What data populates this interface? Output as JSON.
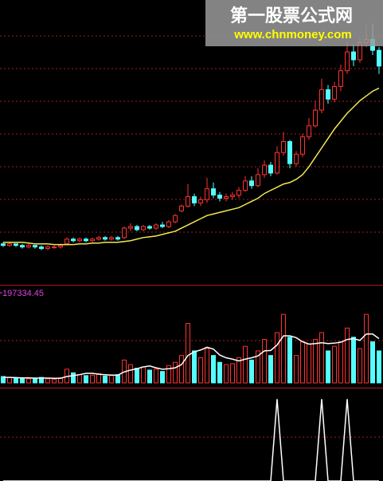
{
  "watermark": {
    "title": "第一股票公式网",
    "url": "www.chnmoney.com"
  },
  "chart_data": [
    {
      "type": "candlestick",
      "up_color": "#ff3232",
      "down_color": "#54ffff",
      "ylim": [
        4,
        22
      ],
      "open": [
        6.5,
        6.4,
        6.5,
        6.4,
        6.3,
        6.4,
        6.3,
        6.2,
        6.3,
        6.3,
        6.5,
        6.8,
        6.7,
        6.8,
        6.7,
        6.8,
        6.9,
        6.8,
        6.9,
        6.9,
        7.5,
        7.6,
        7.4,
        7.6,
        7.5,
        7.7,
        7.6,
        7.9,
        8.6,
        8.9,
        9.5,
        9.1,
        9.3,
        10.0,
        9.6,
        9.4,
        9.5,
        9.6,
        9.9,
        10.5,
        10.2,
        10.9,
        11.5,
        11.0,
        12.3,
        13.0,
        11.6,
        12.2,
        13.3,
        14.0,
        15.0,
        16.3,
        15.7,
        16.5,
        17.5,
        18.7,
        18.2,
        19.3,
        19.5,
        18.8
      ],
      "close": [
        6.4,
        6.5,
        6.4,
        6.3,
        6.4,
        6.3,
        6.2,
        6.3,
        6.3,
        6.4,
        6.8,
        6.7,
        6.8,
        6.7,
        6.8,
        6.9,
        6.8,
        6.9,
        6.8,
        7.5,
        7.6,
        7.4,
        7.6,
        7.5,
        7.7,
        7.6,
        7.9,
        8.3,
        8.9,
        9.5,
        9.1,
        9.3,
        10.0,
        9.6,
        9.4,
        9.5,
        9.6,
        9.9,
        10.5,
        10.2,
        10.9,
        11.5,
        11.0,
        12.3,
        13.0,
        11.6,
        12.2,
        13.3,
        14.0,
        15.0,
        16.3,
        15.7,
        16.5,
        17.5,
        18.7,
        18.2,
        19.3,
        19.5,
        18.8,
        17.8
      ],
      "high": [
        6.6,
        6.6,
        6.5,
        6.5,
        6.5,
        6.4,
        6.4,
        6.4,
        6.4,
        6.5,
        6.9,
        6.9,
        6.9,
        6.9,
        6.9,
        7.0,
        7.0,
        7.0,
        7.0,
        7.6,
        7.8,
        7.7,
        7.7,
        7.7,
        7.8,
        7.9,
        8.0,
        8.4,
        9.0,
        10.3,
        9.7,
        9.5,
        10.7,
        10.4,
        9.8,
        9.7,
        9.8,
        10.1,
        10.8,
        10.8,
        11.3,
        11.8,
        11.7,
        12.7,
        13.6,
        13.1,
        12.4,
        13.5,
        14.5,
        15.6,
        17.0,
        16.6,
        16.8,
        17.9,
        19.3,
        19.2,
        19.6,
        20.4,
        20.5,
        19.0
      ],
      "low": [
        6.3,
        6.3,
        6.3,
        6.2,
        6.2,
        6.2,
        6.1,
        6.1,
        6.2,
        6.2,
        6.4,
        6.6,
        6.6,
        6.6,
        6.6,
        6.7,
        6.7,
        6.7,
        6.7,
        6.8,
        7.3,
        7.3,
        7.3,
        7.4,
        7.4,
        7.5,
        7.5,
        7.8,
        8.5,
        8.8,
        8.9,
        8.9,
        9.1,
        9.4,
        9.2,
        9.2,
        9.3,
        9.4,
        9.8,
        10.0,
        10.1,
        10.7,
        10.8,
        10.9,
        12.1,
        11.3,
        11.4,
        12.0,
        13.1,
        13.9,
        14.8,
        15.4,
        15.5,
        16.2,
        17.3,
        17.8,
        18.0,
        19.0,
        18.5,
        17.3
      ],
      "ma": {
        "color": "#f0e850",
        "values": [
          6.6,
          6.6,
          6.6,
          6.6,
          6.55,
          6.5,
          6.5,
          6.5,
          6.45,
          6.45,
          6.45,
          6.45,
          6.5,
          6.5,
          6.55,
          6.55,
          6.6,
          6.6,
          6.6,
          6.65,
          6.7,
          6.8,
          6.9,
          6.95,
          7.0,
          7.1,
          7.2,
          7.3,
          7.5,
          7.7,
          7.9,
          8.1,
          8.3,
          8.4,
          8.5,
          8.6,
          8.7,
          8.8,
          9.0,
          9.2,
          9.4,
          9.7,
          9.9,
          10.1,
          10.3,
          10.4,
          10.6,
          10.9,
          11.4,
          12.0,
          12.6,
          13.2,
          13.8,
          14.3,
          14.8,
          15.2,
          15.6,
          15.9,
          16.2,
          16.4
        ]
      }
    },
    {
      "type": "volume",
      "ylim": [
        0,
        197334.45
      ],
      "yticks": [
        197334.45
      ],
      "tick_color": "#e040e0",
      "values": [
        14000,
        12000,
        10000,
        11000,
        9000,
        10000,
        12000,
        9000,
        8000,
        11000,
        30000,
        22000,
        18000,
        16000,
        17000,
        20000,
        15000,
        16000,
        18000,
        50000,
        40000,
        32000,
        35000,
        28000,
        30000,
        25000,
        38000,
        45000,
        60000,
        130000,
        70000,
        55000,
        75000,
        60000,
        45000,
        40000,
        42000,
        55000,
        80000,
        50000,
        70000,
        95000,
        60000,
        110000,
        150000,
        100000,
        60000,
        90000,
        85000,
        95000,
        110000,
        70000,
        80000,
        90000,
        120000,
        100000,
        75000,
        150000,
        90000,
        70000
      ],
      "ma": {
        "color": "#ffffff",
        "values": [
          12000,
          12000,
          11500,
          11000,
          11000,
          10500,
          10500,
          10500,
          10000,
          10000,
          14000,
          16000,
          18000,
          21000,
          21000,
          19000,
          18000,
          17000,
          17000,
          24000,
          28000,
          31000,
          35000,
          37000,
          33000,
          30000,
          31000,
          33000,
          40000,
          60000,
          68000,
          72000,
          78000,
          74000,
          61000,
          55000,
          52000,
          48000,
          52000,
          55000,
          59000,
          70000,
          71000,
          83000,
          103000,
          103000,
          99000,
          90000,
          85000,
          86000,
          88000,
          86000,
          87000,
          89000,
          95000,
          97000,
          93000,
          107000,
          107000,
          97000
        ]
      }
    },
    {
      "type": "line",
      "ylim": [
        0,
        1.1
      ],
      "color": "#ffffff",
      "values": [
        0,
        0,
        0,
        0,
        0,
        0,
        0,
        0,
        0,
        0,
        0,
        0,
        0,
        0,
        0,
        0,
        0,
        0,
        0,
        0,
        0,
        0,
        0,
        0,
        0,
        0,
        0,
        0,
        0,
        0,
        0,
        0,
        0,
        0,
        0,
        0,
        0,
        0,
        0,
        0,
        0,
        0,
        0,
        1,
        0,
        0,
        0,
        0,
        0,
        0,
        1,
        0,
        0,
        0,
        1,
        0,
        0,
        0,
        0,
        0
      ]
    }
  ]
}
